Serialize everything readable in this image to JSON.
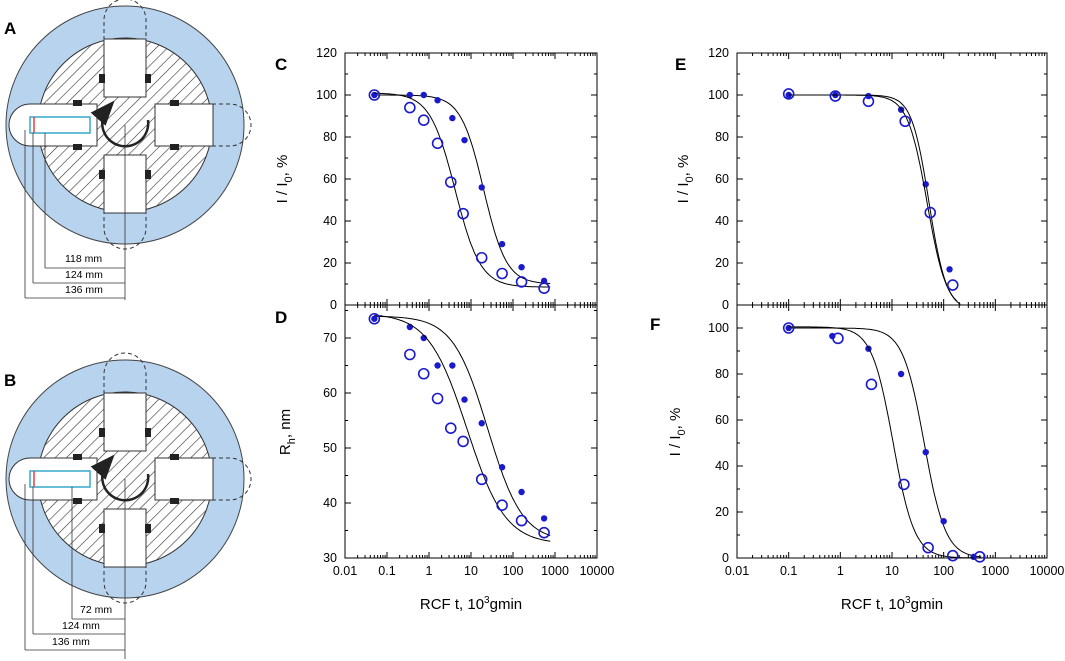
{
  "colors": {
    "series": "#1a1acd",
    "ring": "#b7d3ee",
    "ring_stroke": "#444444",
    "cell": "#35a8c8",
    "meniscus": "#e04040"
  },
  "rotors": [
    {
      "letter": "A",
      "dims": [
        "118 mm",
        "124 mm",
        "136 mm"
      ]
    },
    {
      "letter": "B",
      "dims": [
        "72 mm",
        "124 mm",
        "136 mm"
      ]
    }
  ],
  "axis_common": {
    "x_ticks": [
      "0.01",
      "0.1",
      "1",
      "10",
      "100",
      "1000",
      "10000"
    ],
    "xlabel_prefix": "RCF t, 10",
    "xlabel_sup": "3",
    "xlabel_suffix": "gmin",
    "xlim": [
      0.01,
      10000
    ]
  },
  "chart_data": [
    {
      "panel": "C",
      "type": "scatter",
      "ylabel_main": "I / I",
      "ylabel_sub": "0",
      "ylabel_tail": ", %",
      "ylim": [
        0,
        120
      ],
      "y_ticks": [
        0,
        20,
        40,
        60,
        80,
        100,
        120
      ],
      "series": [
        {
          "name": "filled",
          "marker": "filled",
          "x": [
            0.05,
            0.35,
            0.75,
            1.6,
            3.6,
            7,
            18,
            55,
            160,
            550
          ],
          "y": [
            100,
            100,
            100,
            97.5,
            89,
            78.5,
            56,
            29,
            18,
            11.5
          ],
          "fit": {
            "top": 100,
            "bottom": 10,
            "x50": 20,
            "slope": 1.6
          }
        },
        {
          "name": "open",
          "marker": "open",
          "x": [
            0.05,
            0.35,
            0.75,
            1.6,
            3.3,
            6.5,
            18,
            55,
            160,
            550
          ],
          "y": [
            100,
            94,
            88,
            77,
            58.5,
            43.5,
            22.5,
            15,
            11,
            8
          ],
          "fit": {
            "top": 101,
            "bottom": 8.5,
            "x50": 4.2,
            "slope": 1.45
          }
        }
      ]
    },
    {
      "panel": "D",
      "type": "scatter",
      "ylabel_main": "R",
      "ylabel_sub": "h",
      "ylabel_tail": ", nm",
      "ylim": [
        30,
        76
      ],
      "y_ticks": [
        30,
        40,
        50,
        60,
        70
      ],
      "series": [
        {
          "name": "filled",
          "marker": "filled",
          "x": [
            0.05,
            0.35,
            0.75,
            1.6,
            3.6,
            7,
            18,
            55,
            160,
            550
          ],
          "y": [
            73.5,
            72,
            70,
            65,
            65,
            58.8,
            54.5,
            46.5,
            42,
            37.2
          ],
          "fit": {
            "top": 74,
            "bottom": 33,
            "x50": 25,
            "slope": 1.05
          }
        },
        {
          "name": "open",
          "marker": "open",
          "x": [
            0.05,
            0.35,
            0.75,
            1.6,
            3.3,
            6.5,
            18,
            55,
            160,
            550
          ],
          "y": [
            73.5,
            67,
            63.5,
            59,
            53.6,
            51.2,
            44.3,
            39.6,
            36.8,
            34.6
          ],
          "fit": {
            "top": 74.5,
            "bottom": 32.5,
            "x50": 8,
            "slope": 0.95
          }
        }
      ]
    },
    {
      "panel": "E",
      "type": "scatter",
      "ylabel_main": "I / I",
      "ylabel_sub": "0",
      "ylabel_tail": ", %",
      "ylim": [
        0,
        120
      ],
      "y_ticks": [
        0,
        20,
        40,
        60,
        80,
        100,
        120
      ],
      "series": [
        {
          "name": "filled",
          "marker": "filled",
          "x": [
            0.1,
            0.8,
            3.5,
            15,
            45,
            130
          ],
          "y": [
            100,
            100,
            99.5,
            93,
            57.5,
            17
          ],
          "fit": {
            "top": 100,
            "bottom": -2,
            "x50": 52,
            "slope": 2.6
          }
        },
        {
          "name": "open",
          "marker": "open",
          "x": [
            0.1,
            0.8,
            3.5,
            18,
            55,
            150
          ],
          "y": [
            100.5,
            99.5,
            97,
            87.5,
            44,
            9.5
          ],
          "fit": {
            "top": 100,
            "bottom": -3,
            "x50": 48,
            "slope": 2.3
          }
        }
      ]
    },
    {
      "panel": "F",
      "type": "scatter",
      "ylabel_main": "I / I",
      "ylabel_sub": "0",
      "ylabel_tail": ", %",
      "ylim": [
        0,
        110
      ],
      "y_ticks": [
        0,
        20,
        40,
        60,
        80,
        100
      ],
      "series": [
        {
          "name": "filled",
          "marker": "filled",
          "x": [
            0.1,
            0.7,
            3.5,
            15,
            45,
            100,
            380
          ],
          "y": [
            100,
            96.5,
            91,
            80,
            46,
            16,
            0.5
          ],
          "fit": {
            "top": 100,
            "bottom": 0,
            "x50": 42,
            "slope": 2.1
          }
        },
        {
          "name": "open",
          "marker": "open",
          "x": [
            0.1,
            0.9,
            4,
            17,
            50,
            150,
            500
          ],
          "y": [
            100,
            95.5,
            75.5,
            32,
            4.5,
            1,
            0.5
          ],
          "fit": {
            "top": 100.5,
            "bottom": 0,
            "x50": 10.5,
            "slope": 2.1
          }
        }
      ]
    }
  ]
}
